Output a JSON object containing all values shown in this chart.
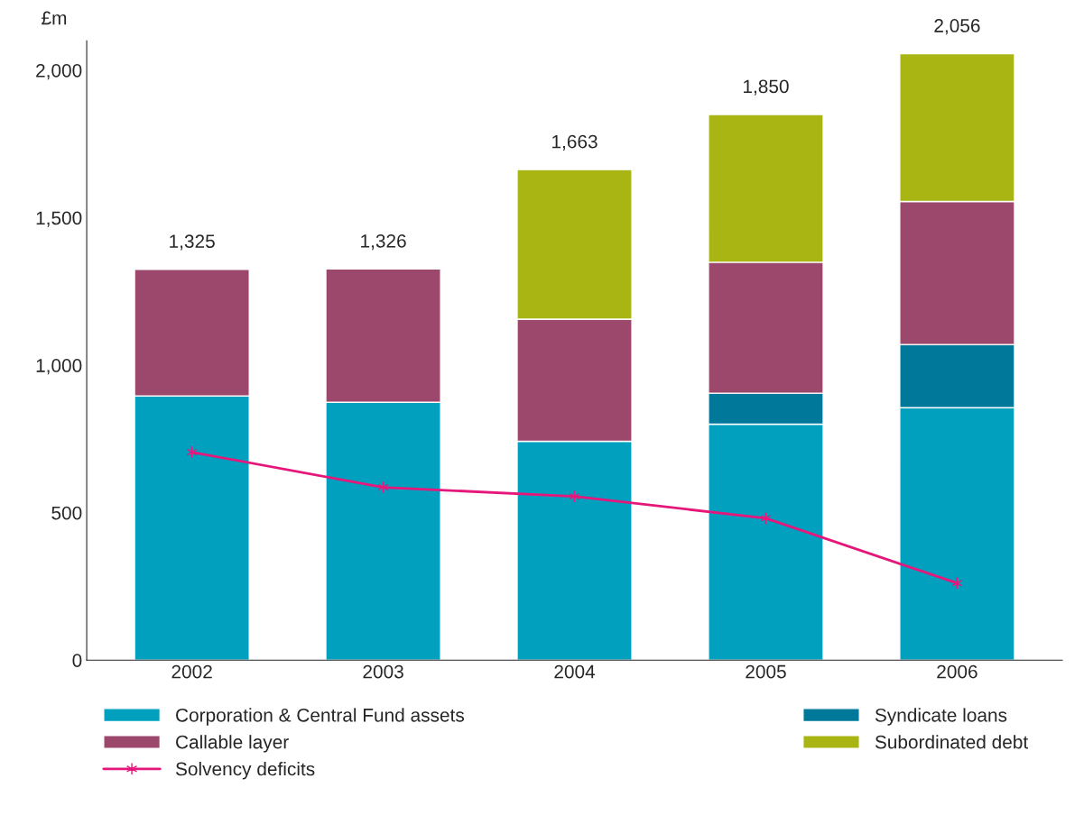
{
  "chart_data": {
    "type": "bar",
    "stacked": true,
    "ylabel": "£m",
    "categories": [
      "2002",
      "2003",
      "2004",
      "2005",
      "2006"
    ],
    "series": [
      {
        "name": "Corporation & Central Fund assets",
        "color": "#00a0be",
        "values": [
          896,
          874,
          742,
          800,
          856
        ]
      },
      {
        "name": "Syndicate loans",
        "color": "#00789a",
        "values": [
          null,
          null,
          null,
          105,
          214
        ]
      },
      {
        "name": "Callable layer",
        "color": "#9c476c",
        "values": [
          429,
          452,
          414,
          444,
          485
        ]
      },
      {
        "name": "Subordinated debt",
        "color": "#a8b512",
        "values": [
          null,
          null,
          507,
          501,
          501
        ]
      },
      {
        "name": "Solvency deficits",
        "color": "#e6177b",
        "type": "line",
        "marker": "cross",
        "values": [
          705,
          586,
          555,
          481,
          261
        ]
      }
    ],
    "totals": [
      "1,325",
      "1,326",
      "1,663",
      "1,850",
      "2,056"
    ],
    "ylim": [
      0,
      2100
    ],
    "yticks": [
      {
        "value": 0,
        "label": "0"
      },
      {
        "value": 500,
        "label": "500"
      },
      {
        "value": 1000,
        "label": "1,000"
      },
      {
        "value": 1500,
        "label": "1,500"
      },
      {
        "value": 2000,
        "label": "2,000"
      }
    ],
    "grid": false,
    "legend": "bottom"
  }
}
